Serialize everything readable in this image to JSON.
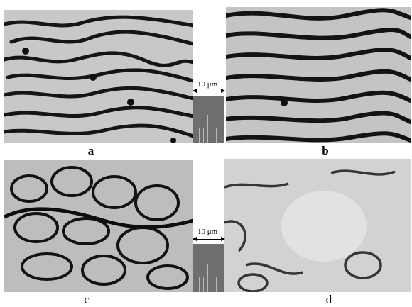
{
  "panels": [
    {
      "id": "a",
      "label": "a",
      "bold": true
    },
    {
      "id": "b",
      "label": "b",
      "bold": true
    },
    {
      "id": "c",
      "label": "c",
      "bold": false
    },
    {
      "id": "d",
      "label": "d",
      "bold": false
    }
  ],
  "scale_bars": [
    {
      "text": "10 μm"
    },
    {
      "text": "10 μm"
    }
  ],
  "colors": {
    "stripe_dark": "#141414",
    "background_gray": "#c4c4c4",
    "scale_block": "#6e6e6e"
  }
}
